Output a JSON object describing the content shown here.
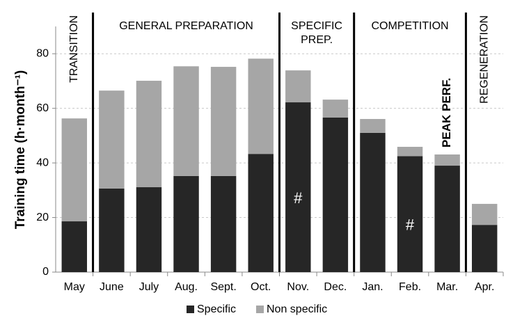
{
  "chart_data": {
    "type": "stacked-bar",
    "ylabel": "Training time (h·month⁻¹)",
    "categories": [
      "May",
      "June",
      "July",
      "Aug.",
      "Sept.",
      "Oct.",
      "Nov.",
      "Dec.",
      "Jan.",
      "Feb.",
      "Mar.",
      "Apr."
    ],
    "series": [
      {
        "name": "Specific",
        "color": "#262626",
        "values": [
          18.6,
          30.6,
          31.1,
          35.2,
          35.2,
          43.3,
          62.2,
          56.6,
          51.0,
          42.5,
          39.0,
          17.3
        ]
      },
      {
        "name": "Non specific",
        "color": "#a6a6a6",
        "values": [
          37.7,
          35.9,
          39.0,
          40.2,
          40.0,
          34.9,
          11.7,
          6.6,
          5.1,
          3.4,
          4.1,
          7.7
        ]
      }
    ],
    "ylim": [
      0,
      90
    ],
    "yticks": [
      0,
      20,
      40,
      60,
      80
    ],
    "grid": true,
    "legend": "bottom",
    "phases": [
      {
        "label": "TRANSITION",
        "from": "May",
        "to": "May",
        "vertical": true
      },
      {
        "label": "GENERAL PREPARATION",
        "from": "June",
        "to": "Oct.",
        "vertical": false
      },
      {
        "label": "SPECIFIC PREP.",
        "from": "Nov.",
        "to": "Dec.",
        "vertical": false
      },
      {
        "label": "COMPETITION",
        "from": "Jan.",
        "to": "Mar.",
        "vertical": false
      },
      {
        "label": "REGENERATION",
        "from": "Apr.",
        "to": "Apr.",
        "vertical": true
      }
    ],
    "annotations": [
      {
        "text": "#",
        "category": "Nov.",
        "vertical": false
      },
      {
        "text": "#",
        "category": "Feb.",
        "vertical": false
      },
      {
        "text": "PEAK PERF.",
        "category": "Mar.",
        "vertical": true
      }
    ]
  }
}
